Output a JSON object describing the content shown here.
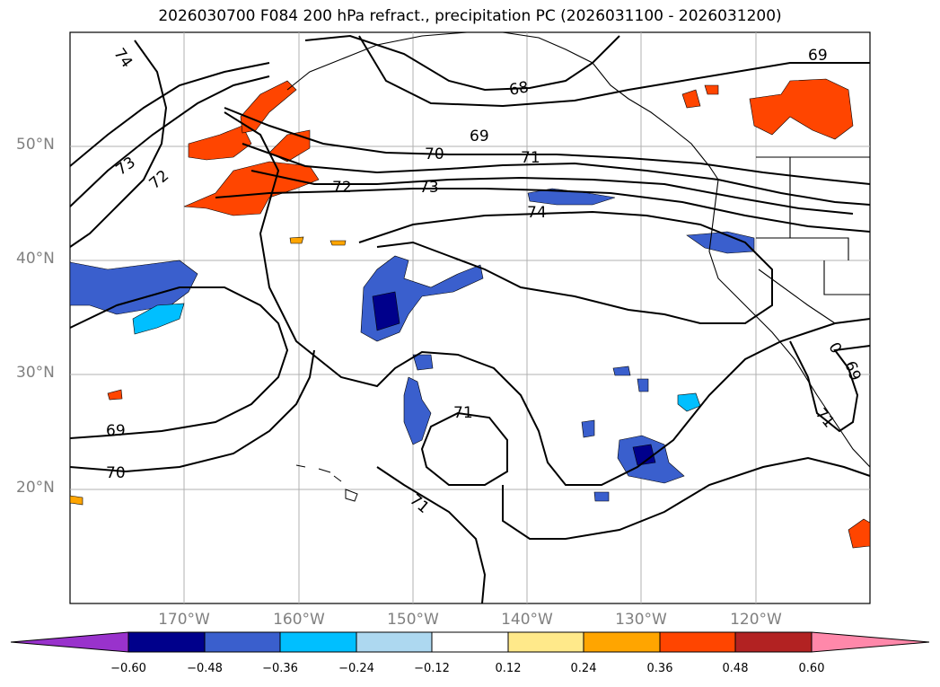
{
  "title": "2026030700 F084 200 hPa refract., precipitation PC (2026031100 - 2026031200)",
  "longitude_ticks": [
    "170°W",
    "160°W",
    "150°W",
    "140°W",
    "130°W",
    "120°W"
  ],
  "latitude_ticks": [
    "50°N",
    "40°N",
    "30°N",
    "20°N"
  ],
  "contour_labels": [
    "74",
    "73",
    "72",
    "72",
    "73",
    "70",
    "71",
    "69",
    "68",
    "69",
    "74",
    "71",
    "69",
    "70",
    "71",
    "71",
    "69",
    "0"
  ],
  "colorbar": {
    "ticks": [
      "−0.60",
      "−0.48",
      "−0.36",
      "−0.24",
      "−0.12",
      "0.12",
      "0.24",
      "0.36",
      "0.48",
      "0.60"
    ],
    "colors": [
      "#9932cc",
      "#00008b",
      "#3a5fcd",
      "#00bfff",
      "#add8f0",
      "#ffffff",
      "#ffe98a",
      "#ffa500",
      "#ff4500",
      "#b22222",
      "#ff88aa"
    ]
  },
  "colors": {
    "land_outline": "#000000",
    "grid": "#b0b0b0",
    "tick_text": "#808080"
  }
}
